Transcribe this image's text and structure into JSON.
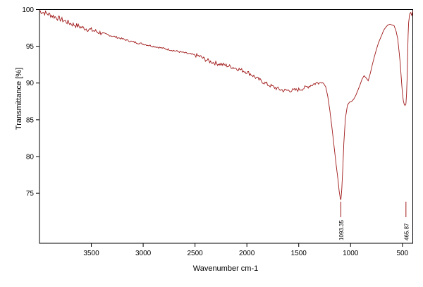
{
  "chart_data": {
    "type": "line",
    "xlabel": "Wavenumber cm-1",
    "ylabel": "Transmittance [%]",
    "xlim": [
      4000,
      400
    ],
    "ylim": [
      68.2,
      100
    ],
    "x_reversed": true,
    "x_ticks": [
      3500,
      3000,
      2500,
      2000,
      1500,
      1000,
      500
    ],
    "x_tick_labels": [
      "3500",
      "3000",
      "2500",
      "2000",
      "1500",
      "1000",
      "500"
    ],
    "y_ticks": [
      75,
      80,
      85,
      90,
      95,
      100
    ],
    "y_tick_labels": [
      "75",
      "80",
      "85",
      "90",
      "95",
      "100"
    ],
    "grid": false,
    "line_color": "#a01818",
    "series": [
      {
        "name": "",
        "x": [
          4000,
          3900,
          3800,
          3700,
          3600,
          3500,
          3400,
          3300,
          3200,
          3100,
          3000,
          2900,
          2800,
          2700,
          2600,
          2500,
          2450,
          2400,
          2350,
          2300,
          2200,
          2100,
          2000,
          1950,
          1900,
          1850,
          1800,
          1750,
          1700,
          1650,
          1600,
          1550,
          1500,
          1450,
          1400,
          1350,
          1300,
          1260,
          1240,
          1220,
          1200,
          1180,
          1160,
          1140,
          1120,
          1110,
          1100,
          1093.35,
          1085,
          1075,
          1065,
          1050,
          1030,
          1010,
          990,
          970,
          950,
          930,
          910,
          890,
          870,
          850,
          830,
          810,
          790,
          770,
          750,
          730,
          700,
          680,
          660,
          640,
          620,
          600,
          580,
          560,
          545,
          530,
          520,
          510,
          500,
          490,
          480,
          470,
          465.87,
          460,
          455,
          450,
          445,
          440,
          430,
          420,
          410,
          400
        ],
        "y": [
          99.8,
          99.3,
          98.7,
          98.1,
          97.6,
          97.2,
          96.8,
          96.4,
          96.0,
          95.6,
          95.3,
          95.0,
          94.7,
          94.4,
          94.1,
          93.8,
          93.6,
          93.2,
          92.9,
          92.7,
          92.4,
          92.0,
          91.5,
          91.1,
          90.6,
          90.2,
          89.8,
          89.5,
          89.2,
          89.0,
          89.0,
          89.0,
          89.1,
          89.3,
          89.6,
          89.9,
          90.1,
          90.0,
          89.5,
          88.2,
          86.3,
          84.0,
          81.5,
          79.0,
          76.7,
          75.3,
          74.4,
          74.1,
          75.5,
          78.3,
          81.8,
          85.2,
          87.0,
          87.4,
          87.5,
          87.8,
          88.3,
          89.0,
          89.7,
          90.5,
          91.0,
          90.7,
          90.3,
          91.3,
          92.5,
          93.6,
          94.6,
          95.5,
          96.5,
          97.2,
          97.6,
          97.9,
          98.0,
          97.9,
          97.8,
          97.0,
          96.0,
          94.0,
          92.5,
          90.5,
          88.6,
          87.5,
          87.0,
          87.0,
          87.2,
          88.5,
          90.5,
          93.5,
          96.5,
          98.2,
          99.4,
          99.6,
          99.2,
          99.8
        ]
      }
    ],
    "annotations": [
      {
        "x": 1093.35,
        "label": "1093.35"
      },
      {
        "x": 465.87,
        "label": "465.87"
      }
    ]
  }
}
